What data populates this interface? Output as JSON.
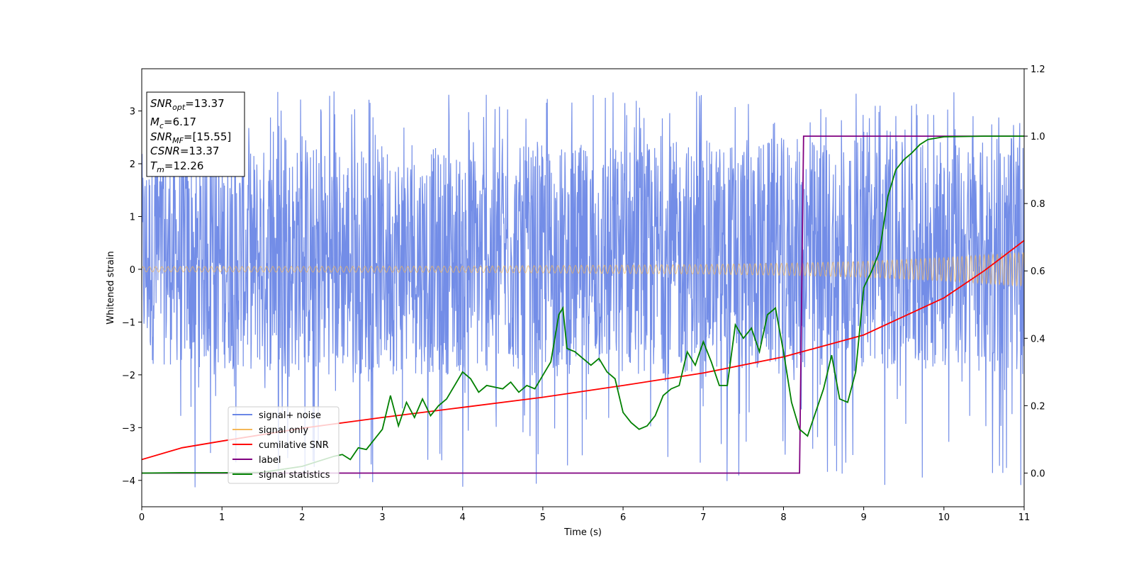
{
  "chart_data": {
    "type": "line",
    "xlabel": "Time (s)",
    "ylabel": "Whitened strain",
    "xlim": [
      0,
      11
    ],
    "ylim": [
      -4.5,
      3.8
    ],
    "y2lim": [
      -0.1,
      1.2
    ],
    "grid": false,
    "legend_position": "lower-left",
    "x_ticks": [
      "0",
      "1",
      "2",
      "3",
      "4",
      "5",
      "6",
      "7",
      "8",
      "9",
      "10",
      "11"
    ],
    "y_ticks": [
      "−4",
      "−3",
      "−2",
      "−1",
      "0",
      "1",
      "2",
      "3"
    ],
    "y2_ticks": [
      "0.0",
      "0.2",
      "0.4",
      "0.6",
      "0.8",
      "1.0",
      "1.2"
    ],
    "info_box": {
      "snr_opt": {
        "name": "SNR",
        "sub": "opt",
        "value": "=13.37"
      },
      "mc": {
        "name": "M",
        "sub": "c",
        "value": "=6.17"
      },
      "snr_mf": {
        "name": "SNR",
        "sub": "MF",
        "value": "=[15.55]"
      },
      "csnr": {
        "name": "CSNR",
        "sub": "",
        "value": "=13.37"
      },
      "tm": {
        "name": "T",
        "sub": "m",
        "value": "=12.26"
      }
    },
    "series": [
      {
        "name": "signal+ noise",
        "color": "#6b87e6",
        "axis": "left",
        "envelope_upper": [
          [
            0,
            2.2
          ],
          [
            2,
            2.4
          ],
          [
            4,
            2.3
          ],
          [
            6,
            2.4
          ],
          [
            8,
            2.5
          ],
          [
            10,
            2.4
          ],
          [
            11,
            2.5
          ]
        ],
        "envelope_lower": [
          [
            0,
            -1.8
          ],
          [
            2,
            -2.0
          ],
          [
            4,
            -2.0
          ],
          [
            6,
            -2.0
          ],
          [
            8,
            -2.0
          ],
          [
            10,
            -1.9
          ],
          [
            11,
            -2.0
          ]
        ],
        "max": 3.45,
        "min": -4.15
      },
      {
        "name": "signal only",
        "color": "#f5b858",
        "axis": "left",
        "amplitude": [
          [
            0,
            0.05
          ],
          [
            4,
            0.06
          ],
          [
            7,
            0.09
          ],
          [
            8.2,
            0.12
          ],
          [
            9,
            0.15
          ],
          [
            10,
            0.22
          ],
          [
            11,
            0.32
          ]
        ]
      },
      {
        "name": "cumilative SNR",
        "color": "#ff0000",
        "axis": "right",
        "x": [
          0,
          0.5,
          1,
          2,
          3,
          4,
          5,
          6,
          7,
          8,
          9,
          10,
          10.5,
          11
        ],
        "y": [
          0.04,
          0.075,
          0.095,
          0.133,
          0.165,
          0.195,
          0.225,
          0.26,
          0.297,
          0.345,
          0.41,
          0.52,
          0.6,
          0.69
        ]
      },
      {
        "name": "label",
        "color": "#800080",
        "axis": "right",
        "x": [
          0,
          8.2,
          8.25,
          11
        ],
        "y": [
          0,
          0,
          1,
          1
        ]
      },
      {
        "name": "signal statistics",
        "color": "#008000",
        "axis": "right",
        "x": [
          0,
          0.5,
          1,
          1.5,
          2,
          2.2,
          2.4,
          2.5,
          2.6,
          2.7,
          2.8,
          2.9,
          3.0,
          3.1,
          3.2,
          3.3,
          3.4,
          3.5,
          3.6,
          3.7,
          3.8,
          3.9,
          4.0,
          4.1,
          4.2,
          4.3,
          4.4,
          4.5,
          4.6,
          4.7,
          4.8,
          4.9,
          5.0,
          5.1,
          5.2,
          5.25,
          5.3,
          5.4,
          5.5,
          5.6,
          5.7,
          5.8,
          5.9,
          6.0,
          6.1,
          6.2,
          6.3,
          6.4,
          6.5,
          6.6,
          6.7,
          6.8,
          6.9,
          7.0,
          7.1,
          7.2,
          7.3,
          7.4,
          7.5,
          7.6,
          7.7,
          7.8,
          7.9,
          8.0,
          8.1,
          8.2,
          8.3,
          8.4,
          8.5,
          8.6,
          8.7,
          8.8,
          8.9,
          9.0,
          9.1,
          9.2,
          9.3,
          9.4,
          9.5,
          9.6,
          9.7,
          9.8,
          10.0,
          10.5,
          11.0
        ],
        "y": [
          0.0,
          0.001,
          0.001,
          0.002,
          0.02,
          0.035,
          0.05,
          0.055,
          0.04,
          0.075,
          0.07,
          0.1,
          0.13,
          0.23,
          0.14,
          0.21,
          0.165,
          0.22,
          0.17,
          0.2,
          0.22,
          0.26,
          0.3,
          0.28,
          0.24,
          0.26,
          0.255,
          0.25,
          0.27,
          0.24,
          0.26,
          0.25,
          0.29,
          0.33,
          0.47,
          0.49,
          0.37,
          0.36,
          0.34,
          0.32,
          0.34,
          0.3,
          0.28,
          0.18,
          0.15,
          0.13,
          0.14,
          0.17,
          0.23,
          0.25,
          0.26,
          0.36,
          0.32,
          0.39,
          0.33,
          0.26,
          0.26,
          0.44,
          0.4,
          0.43,
          0.36,
          0.47,
          0.49,
          0.36,
          0.21,
          0.13,
          0.11,
          0.18,
          0.25,
          0.35,
          0.22,
          0.21,
          0.3,
          0.55,
          0.6,
          0.66,
          0.82,
          0.9,
          0.93,
          0.95,
          0.975,
          0.99,
          0.998,
          1.0,
          1.0
        ]
      }
    ]
  }
}
